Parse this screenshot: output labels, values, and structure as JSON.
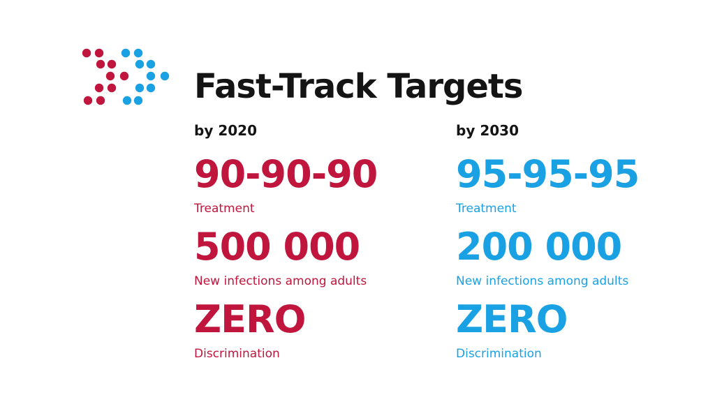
{
  "title": "Fast-Track Targets",
  "colors": {
    "red": "#c0153c",
    "blue": "#1aa1e3",
    "text": "#141414"
  },
  "logo": {
    "icon": "arrow-dots-icon"
  },
  "columns": [
    {
      "year": "by 2020",
      "color": "#c0153c",
      "targets": [
        {
          "value": "90-90-90",
          "label": "Treatment"
        },
        {
          "value": "500 000",
          "label": "New infections among adults"
        },
        {
          "value": "ZERO",
          "label": "Discrimination"
        }
      ]
    },
    {
      "year": "by 2030",
      "color": "#1aa1e3",
      "targets": [
        {
          "value": "95-95-95",
          "label": "Treatment"
        },
        {
          "value": "200 000",
          "label": "New infections among adults"
        },
        {
          "value": "ZERO",
          "label": "Discrimination"
        }
      ]
    }
  ]
}
